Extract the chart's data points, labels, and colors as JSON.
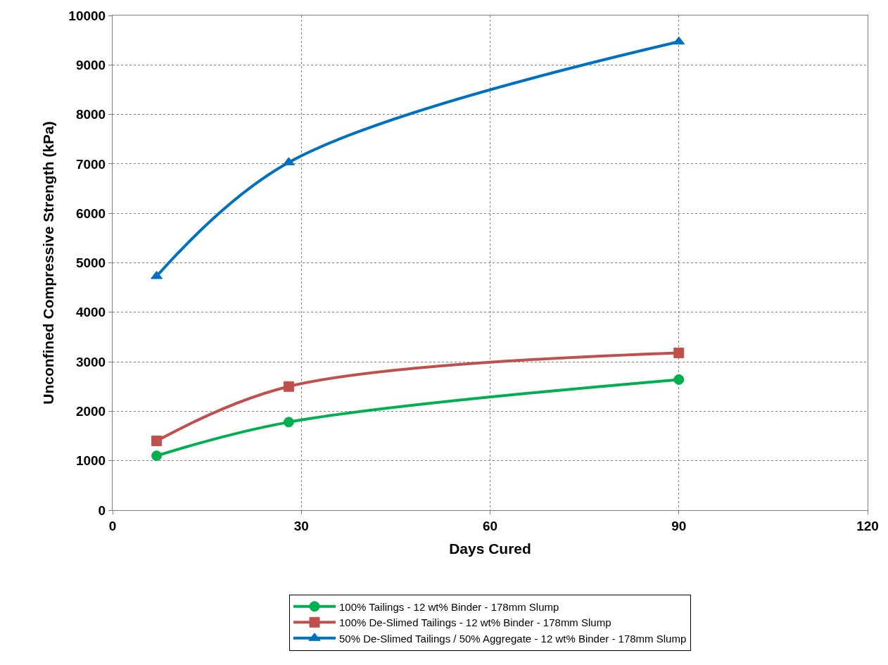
{
  "chart_data": {
    "type": "line",
    "xlabel": "Days Cured",
    "ylabel": "Unconfined Compressive Strength (kPa)",
    "x": [
      7,
      28,
      90
    ],
    "series": [
      {
        "name": "100% Tailings - 12 wt% Binder - 178mm Slump",
        "color": "#00b050",
        "marker": "circle",
        "values": [
          1100,
          1780,
          2640
        ]
      },
      {
        "name": "100% De-Slimed Tailings - 12 wt% Binder - 178mm Slump",
        "color": "#c0504d",
        "marker": "square",
        "values": [
          1400,
          2500,
          3180
        ]
      },
      {
        "name": "50% De-Slimed Tailings / 50% Aggregate - 12 wt% Binder - 178mm Slump",
        "color": "#0070c0",
        "marker": "triangle",
        "values": [
          4730,
          7030,
          9470
        ]
      }
    ],
    "xlim": [
      0,
      120
    ],
    "xticks": [
      0,
      30,
      60,
      90,
      120
    ],
    "ylim": [
      0,
      10000
    ],
    "yticks": [
      0,
      1000,
      2000,
      3000,
      4000,
      5000,
      6000,
      7000,
      8000,
      9000,
      10000
    ],
    "grid": true,
    "legend": "bottom",
    "line_style": "solid"
  }
}
